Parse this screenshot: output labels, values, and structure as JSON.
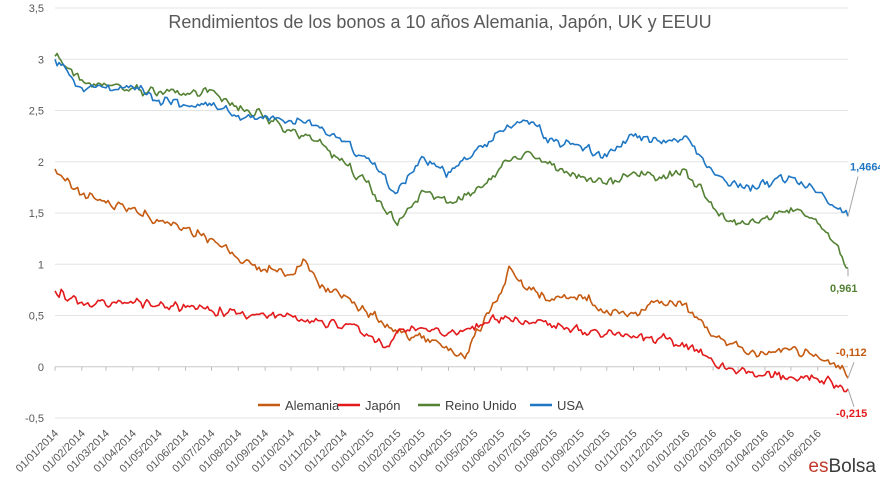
{
  "chart_data": {
    "type": "line",
    "title": "Rendimientos de los bonos a 10 años Alemania, Japón, UK y EEUU",
    "ylim": [
      -0.5,
      3.5
    ],
    "y_ticks": [
      "-0,5",
      "0",
      "0,5",
      "1",
      "1,5",
      "2",
      "2,5",
      "3",
      "3,5"
    ],
    "x_ticks": [
      "01/01/2014",
      "01/02/2014",
      "01/03/2014",
      "01/04/2014",
      "01/05/2014",
      "01/06/2014",
      "01/07/2014",
      "01/08/2014",
      "01/09/2014",
      "01/10/2014",
      "01/11/2014",
      "01/12/2014",
      "01/01/2015",
      "01/02/2015",
      "01/03/2015",
      "01/04/2015",
      "01/05/2015",
      "01/06/2015",
      "01/07/2015",
      "01/08/2015",
      "01/09/2015",
      "01/10/2015",
      "01/11/2015",
      "01/12/2015",
      "01/01/2016",
      "01/02/2016",
      "01/03/2016",
      "01/04/2016",
      "01/05/2016",
      "01/06/2016"
    ],
    "x_range": [
      "01/01/2014",
      "06/07/2016"
    ],
    "legend_position": "bottom",
    "series": [
      {
        "name": "Alemania",
        "color": "#c55a11",
        "points": [
          [
            "01/01/2014",
            1.93
          ],
          [
            "01/02/2014",
            1.68
          ],
          [
            "01/03/2014",
            1.6
          ],
          [
            "01/04/2014",
            1.55
          ],
          [
            "01/05/2014",
            1.42
          ],
          [
            "01/06/2014",
            1.35
          ],
          [
            "01/07/2014",
            1.25
          ],
          [
            "01/08/2014",
            1.05
          ],
          [
            "01/09/2014",
            0.95
          ],
          [
            "01/10/2014",
            0.9
          ],
          [
            "15/10/2014",
            1.05
          ],
          [
            "01/11/2014",
            0.82
          ],
          [
            "01/12/2014",
            0.7
          ],
          [
            "01/01/2015",
            0.52
          ],
          [
            "01/02/2015",
            0.33
          ],
          [
            "01/03/2015",
            0.28
          ],
          [
            "01/04/2015",
            0.16
          ],
          [
            "20/04/2015",
            0.08
          ],
          [
            "01/05/2015",
            0.3
          ],
          [
            "01/06/2015",
            0.72
          ],
          [
            "10/06/2015",
            0.98
          ],
          [
            "01/07/2015",
            0.75
          ],
          [
            "01/08/2015",
            0.65
          ],
          [
            "01/09/2015",
            0.7
          ],
          [
            "01/10/2015",
            0.55
          ],
          [
            "01/11/2015",
            0.52
          ],
          [
            "01/12/2015",
            0.62
          ],
          [
            "01/01/2016",
            0.62
          ],
          [
            "01/02/2016",
            0.3
          ],
          [
            "01/03/2016",
            0.2
          ],
          [
            "01/04/2016",
            0.12
          ],
          [
            "01/05/2016",
            0.17
          ],
          [
            "01/06/2016",
            0.1
          ],
          [
            "27/06/2016",
            -0.02
          ],
          [
            "06/07/2016",
            -0.112
          ]
        ]
      },
      {
        "name": "Japón",
        "color": "#e31a1c",
        "points": [
          [
            "01/01/2014",
            0.74
          ],
          [
            "01/02/2014",
            0.63
          ],
          [
            "01/03/2014",
            0.6
          ],
          [
            "01/04/2014",
            0.62
          ],
          [
            "01/05/2014",
            0.6
          ],
          [
            "01/06/2014",
            0.58
          ],
          [
            "01/07/2014",
            0.55
          ],
          [
            "01/08/2014",
            0.52
          ],
          [
            "01/09/2014",
            0.5
          ],
          [
            "01/10/2014",
            0.5
          ],
          [
            "01/11/2014",
            0.45
          ],
          [
            "01/12/2014",
            0.4
          ],
          [
            "01/01/2015",
            0.3
          ],
          [
            "20/01/2015",
            0.2
          ],
          [
            "01/02/2015",
            0.35
          ],
          [
            "01/03/2015",
            0.38
          ],
          [
            "01/04/2015",
            0.33
          ],
          [
            "01/05/2015",
            0.36
          ],
          [
            "01/06/2015",
            0.48
          ],
          [
            "01/07/2015",
            0.44
          ],
          [
            "01/08/2015",
            0.4
          ],
          [
            "01/09/2015",
            0.36
          ],
          [
            "01/10/2015",
            0.32
          ],
          [
            "01/11/2015",
            0.3
          ],
          [
            "01/12/2015",
            0.28
          ],
          [
            "01/01/2016",
            0.22
          ],
          [
            "01/02/2016",
            0.05
          ],
          [
            "01/03/2016",
            -0.05
          ],
          [
            "01/04/2016",
            -0.08
          ],
          [
            "01/05/2016",
            -0.1
          ],
          [
            "01/06/2016",
            -0.12
          ],
          [
            "27/06/2016",
            -0.18
          ],
          [
            "06/07/2016",
            -0.215
          ]
        ]
      },
      {
        "name": "Reino Unido",
        "color": "#548235",
        "points": [
          [
            "01/01/2014",
            3.03
          ],
          [
            "01/02/2014",
            2.8
          ],
          [
            "01/03/2014",
            2.75
          ],
          [
            "01/04/2014",
            2.72
          ],
          [
            "01/05/2014",
            2.68
          ],
          [
            "01/06/2014",
            2.65
          ],
          [
            "01/07/2014",
            2.7
          ],
          [
            "01/08/2014",
            2.5
          ],
          [
            "01/09/2014",
            2.45
          ],
          [
            "01/10/2014",
            2.3
          ],
          [
            "01/11/2014",
            2.2
          ],
          [
            "01/12/2014",
            2.0
          ],
          [
            "01/01/2015",
            1.75
          ],
          [
            "01/02/2015",
            1.38
          ],
          [
            "01/03/2015",
            1.72
          ],
          [
            "01/04/2015",
            1.6
          ],
          [
            "01/05/2015",
            1.7
          ],
          [
            "01/06/2015",
            1.95
          ],
          [
            "01/07/2015",
            2.1
          ],
          [
            "01/08/2015",
            1.98
          ],
          [
            "01/09/2015",
            1.85
          ],
          [
            "01/10/2015",
            1.78
          ],
          [
            "01/11/2015",
            1.9
          ],
          [
            "01/12/2015",
            1.85
          ],
          [
            "01/01/2016",
            1.92
          ],
          [
            "01/02/2016",
            1.55
          ],
          [
            "01/03/2016",
            1.4
          ],
          [
            "01/04/2016",
            1.45
          ],
          [
            "01/05/2016",
            1.55
          ],
          [
            "01/06/2016",
            1.4
          ],
          [
            "27/06/2016",
            1.1
          ],
          [
            "06/07/2016",
            0.961
          ]
        ]
      },
      {
        "name": "USA",
        "color": "#1f77c4",
        "points": [
          [
            "01/01/2014",
            3.0
          ],
          [
            "01/02/2014",
            2.72
          ],
          [
            "01/03/2014",
            2.72
          ],
          [
            "01/04/2014",
            2.73
          ],
          [
            "01/05/2014",
            2.6
          ],
          [
            "01/06/2014",
            2.55
          ],
          [
            "01/07/2014",
            2.55
          ],
          [
            "01/08/2014",
            2.45
          ],
          [
            "01/09/2014",
            2.45
          ],
          [
            "01/10/2014",
            2.4
          ],
          [
            "01/11/2014",
            2.35
          ],
          [
            "01/12/2014",
            2.2
          ],
          [
            "01/01/2015",
            2.0
          ],
          [
            "01/02/2015",
            1.7
          ],
          [
            "01/03/2015",
            2.05
          ],
          [
            "01/04/2015",
            1.9
          ],
          [
            "01/05/2015",
            2.1
          ],
          [
            "01/06/2015",
            2.3
          ],
          [
            "01/07/2015",
            2.4
          ],
          [
            "01/08/2015",
            2.2
          ],
          [
            "01/09/2015",
            2.15
          ],
          [
            "01/10/2015",
            2.05
          ],
          [
            "01/11/2015",
            2.25
          ],
          [
            "01/12/2015",
            2.2
          ],
          [
            "01/01/2016",
            2.25
          ],
          [
            "01/02/2016",
            1.9
          ],
          [
            "01/03/2016",
            1.75
          ],
          [
            "01/04/2016",
            1.78
          ],
          [
            "01/05/2016",
            1.85
          ],
          [
            "01/06/2016",
            1.7
          ],
          [
            "27/06/2016",
            1.55
          ],
          [
            "06/07/2016",
            1.4664
          ]
        ]
      }
    ],
    "end_labels": [
      {
        "series": "USA",
        "text": "1,4664",
        "color": "#1f77c4"
      },
      {
        "series": "Reino Unido",
        "text": "0,961",
        "color": "#548235"
      },
      {
        "series": "Alemania",
        "text": "-0,112",
        "color": "#c55a11"
      },
      {
        "series": "Japón",
        "text": "-0,215",
        "color": "#e31a1c"
      }
    ]
  },
  "brand": {
    "part1": "es",
    "part2": "Bolsa"
  }
}
